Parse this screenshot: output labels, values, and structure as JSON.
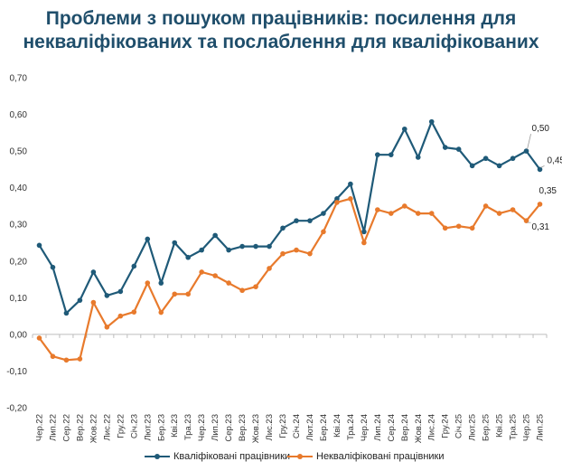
{
  "title_line1": "Проблеми з пошуком працівників: посилення для",
  "title_line2": "некваліфікованих та послаблення для кваліфікованих",
  "chart_data": {
    "type": "line",
    "title": "Проблеми з пошуком працівників: посилення для некваліфікованих та послаблення для кваліфікованих",
    "xlabel": "",
    "ylabel": "",
    "ylim": [
      -0.2,
      0.7
    ],
    "yticks": [
      "-0,20",
      "-0,10",
      "0,00",
      "0,10",
      "0,20",
      "0,30",
      "0,40",
      "0,50",
      "0,60",
      "0,70"
    ],
    "grid": false,
    "legend_position": "bottom",
    "categories": [
      "Чер.22",
      "Лип.22",
      "Сер.22",
      "Вер.22",
      "Жов.22",
      "Лис.22",
      "Гру.22",
      "Січ.23",
      "Лют.23",
      "Бер.23",
      "Кві.23",
      "Тра.23",
      "Чер.23",
      "Лип.23",
      "Сер.23",
      "Вер.23",
      "Жов.23",
      "Лис.23",
      "Гру.23",
      "Січ.24",
      "Лют.24",
      "Бер.24",
      "Кві.24",
      "Тра.24",
      "Чер.24",
      "Лип.24",
      "Сер.24",
      "Вер.24",
      "Жов.24",
      "Лис.24",
      "Гру.24",
      "Січ.25",
      "Лют.25",
      "Бер.25",
      "Кві.25",
      "Тра.25",
      "Чер.25",
      "Лип.25"
    ],
    "series": [
      {
        "name": "Кваліфіковані працівники",
        "color": "#1f5a78",
        "values": [
          0.243,
          0.183,
          0.058,
          0.093,
          0.17,
          0.106,
          0.117,
          0.186,
          0.26,
          0.14,
          0.25,
          0.21,
          0.23,
          0.27,
          0.23,
          0.24,
          0.24,
          0.24,
          0.29,
          0.31,
          0.31,
          0.33,
          0.37,
          0.41,
          0.28,
          0.49,
          0.49,
          0.56,
          0.483,
          0.58,
          0.51,
          0.505,
          0.46,
          0.48,
          0.46,
          0.48,
          0.5,
          0.45
        ]
      },
      {
        "name": "Некваліфіковані працівники",
        "color": "#e87a2c",
        "values": [
          -0.01,
          -0.06,
          -0.07,
          -0.067,
          0.087,
          0.02,
          0.05,
          0.061,
          0.14,
          0.06,
          0.11,
          0.11,
          0.17,
          0.16,
          0.14,
          0.12,
          0.13,
          0.18,
          0.22,
          0.23,
          0.22,
          0.28,
          0.36,
          0.37,
          0.25,
          0.34,
          0.33,
          0.35,
          0.33,
          0.33,
          0.29,
          0.295,
          0.29,
          0.35,
          0.33,
          0.34,
          0.31,
          0.355
        ]
      }
    ],
    "annotations": [
      {
        "series": 0,
        "index": 36,
        "text": "0,50"
      },
      {
        "series": 0,
        "index": 37,
        "text": "0,45"
      },
      {
        "series": 1,
        "index": 37,
        "text": "0,35"
      },
      {
        "series": 1,
        "index": 36,
        "text": "0,31"
      }
    ]
  }
}
